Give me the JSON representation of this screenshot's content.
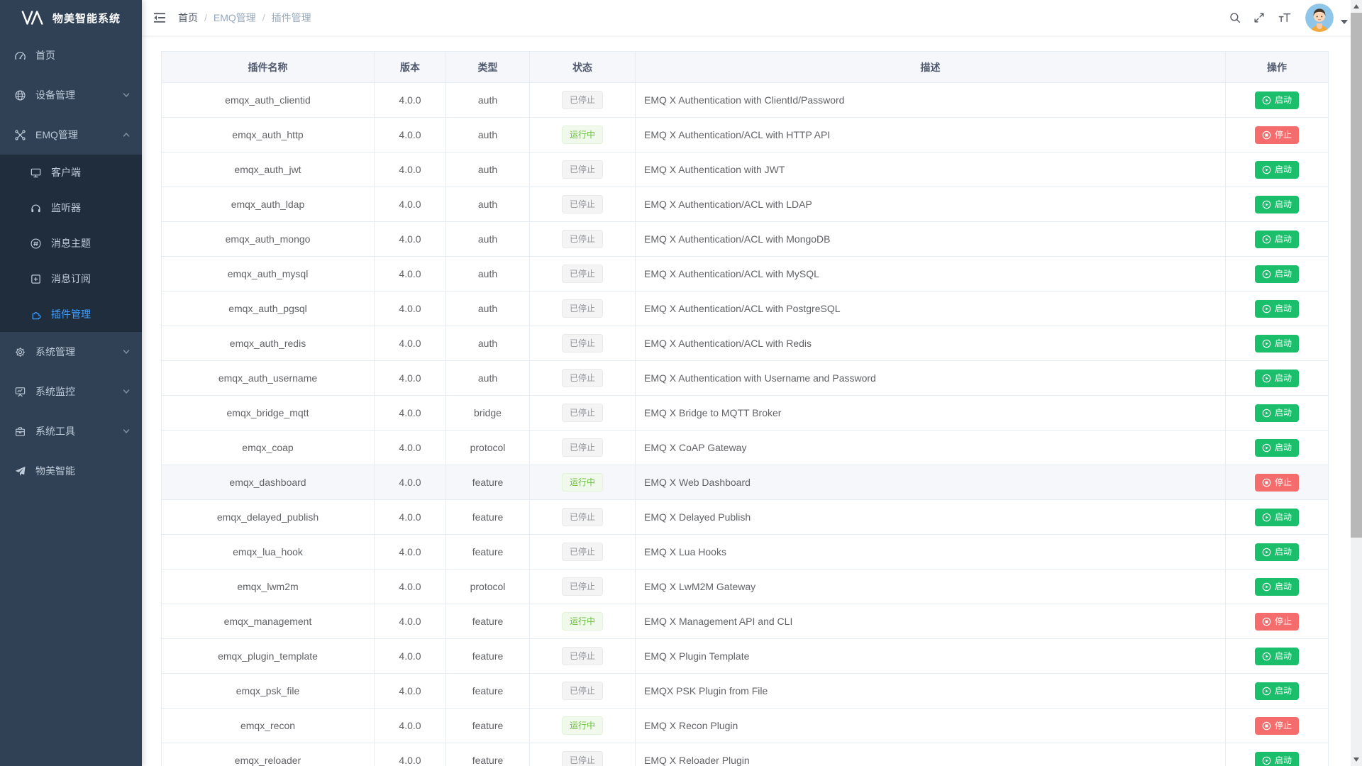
{
  "app": {
    "title": "物美智能系统"
  },
  "sidebar": {
    "items": [
      {
        "id": "home",
        "label": "首页",
        "icon": "dashboard-icon"
      },
      {
        "id": "device-management",
        "label": "设备管理",
        "icon": "device-icon",
        "chevron": "down"
      },
      {
        "id": "emq-management",
        "label": "EMQ管理",
        "icon": "emq-icon",
        "chevron": "up",
        "expanded": true,
        "children": [
          {
            "id": "clients",
            "label": "客户端",
            "icon": "client-icon"
          },
          {
            "id": "listeners",
            "label": "监听器",
            "icon": "listener-icon"
          },
          {
            "id": "message-topics",
            "label": "消息主题",
            "icon": "topic-icon"
          },
          {
            "id": "message-subscriptions",
            "label": "消息订阅",
            "icon": "subscription-icon"
          },
          {
            "id": "plugin-management",
            "label": "插件管理",
            "icon": "plugin-icon",
            "active": true
          }
        ]
      },
      {
        "id": "system-management",
        "label": "系统管理",
        "icon": "settings-icon",
        "chevron": "down"
      },
      {
        "id": "system-monitor",
        "label": "系统监控",
        "icon": "monitor-icon",
        "chevron": "down"
      },
      {
        "id": "system-tools",
        "label": "系统工具",
        "icon": "tools-icon",
        "chevron": "down"
      },
      {
        "id": "wumei-smart",
        "label": "物美智能",
        "icon": "brand-icon"
      }
    ]
  },
  "navbar": {
    "breadcrumb": [
      "首页",
      "EMQ管理",
      "插件管理"
    ]
  },
  "table": {
    "columns": [
      "插件名称",
      "版本",
      "类型",
      "状态",
      "描述",
      "操作"
    ],
    "status_labels": {
      "running": "运行中",
      "stopped": "已停止"
    },
    "action_labels": {
      "start": "启动",
      "stop": "停止"
    },
    "rows": [
      {
        "name": "emqx_auth_clientid",
        "version": "4.0.0",
        "type": "auth",
        "status": "stopped",
        "description": "EMQ X Authentication with ClientId/Password"
      },
      {
        "name": "emqx_auth_http",
        "version": "4.0.0",
        "type": "auth",
        "status": "running",
        "description": "EMQ X Authentication/ACL with HTTP API"
      },
      {
        "name": "emqx_auth_jwt",
        "version": "4.0.0",
        "type": "auth",
        "status": "stopped",
        "description": "EMQ X Authentication with JWT"
      },
      {
        "name": "emqx_auth_ldap",
        "version": "4.0.0",
        "type": "auth",
        "status": "stopped",
        "description": "EMQ X Authentication/ACL with LDAP"
      },
      {
        "name": "emqx_auth_mongo",
        "version": "4.0.0",
        "type": "auth",
        "status": "stopped",
        "description": "EMQ X Authentication/ACL with MongoDB"
      },
      {
        "name": "emqx_auth_mysql",
        "version": "4.0.0",
        "type": "auth",
        "status": "stopped",
        "description": "EMQ X Authentication/ACL with MySQL"
      },
      {
        "name": "emqx_auth_pgsql",
        "version": "4.0.0",
        "type": "auth",
        "status": "stopped",
        "description": "EMQ X Authentication/ACL with PostgreSQL"
      },
      {
        "name": "emqx_auth_redis",
        "version": "4.0.0",
        "type": "auth",
        "status": "stopped",
        "description": "EMQ X Authentication/ACL with Redis"
      },
      {
        "name": "emqx_auth_username",
        "version": "4.0.0",
        "type": "auth",
        "status": "stopped",
        "description": "EMQ X Authentication with Username and Password"
      },
      {
        "name": "emqx_bridge_mqtt",
        "version": "4.0.0",
        "type": "bridge",
        "status": "stopped",
        "description": "EMQ X Bridge to MQTT Broker"
      },
      {
        "name": "emqx_coap",
        "version": "4.0.0",
        "type": "protocol",
        "status": "stopped",
        "description": "EMQ X CoAP Gateway"
      },
      {
        "name": "emqx_dashboard",
        "version": "4.0.0",
        "type": "feature",
        "status": "running",
        "description": "EMQ X Web Dashboard",
        "highlighted": true
      },
      {
        "name": "emqx_delayed_publish",
        "version": "4.0.0",
        "type": "feature",
        "status": "stopped",
        "description": "EMQ X Delayed Publish"
      },
      {
        "name": "emqx_lua_hook",
        "version": "4.0.0",
        "type": "feature",
        "status": "stopped",
        "description": "EMQ X Lua Hooks"
      },
      {
        "name": "emqx_lwm2m",
        "version": "4.0.0",
        "type": "protocol",
        "status": "stopped",
        "description": "EMQ X LwM2M Gateway"
      },
      {
        "name": "emqx_management",
        "version": "4.0.0",
        "type": "feature",
        "status": "running",
        "description": "EMQ X Management API and CLI"
      },
      {
        "name": "emqx_plugin_template",
        "version": "4.0.0",
        "type": "feature",
        "status": "stopped",
        "description": "EMQ X Plugin Template"
      },
      {
        "name": "emqx_psk_file",
        "version": "4.0.0",
        "type": "feature",
        "status": "stopped",
        "description": "EMQX PSK Plugin from File"
      },
      {
        "name": "emqx_recon",
        "version": "4.0.0",
        "type": "feature",
        "status": "running",
        "description": "EMQ X Recon Plugin"
      },
      {
        "name": "emqx_reloader",
        "version": "4.0.0",
        "type": "feature",
        "status": "stopped",
        "description": "EMQ X Reloader Plugin"
      }
    ]
  },
  "colors": {
    "accent": "#409eff",
    "start_button": "#1abe6b",
    "stop_button": "#f56c6c",
    "running_text": "#67c23a",
    "running_bg": "#f0f9eb",
    "stopped_text": "#909399",
    "stopped_bg": "#f4f4f5",
    "sidebar_bg": "#304156",
    "submenu_bg": "#1f2d3d"
  }
}
